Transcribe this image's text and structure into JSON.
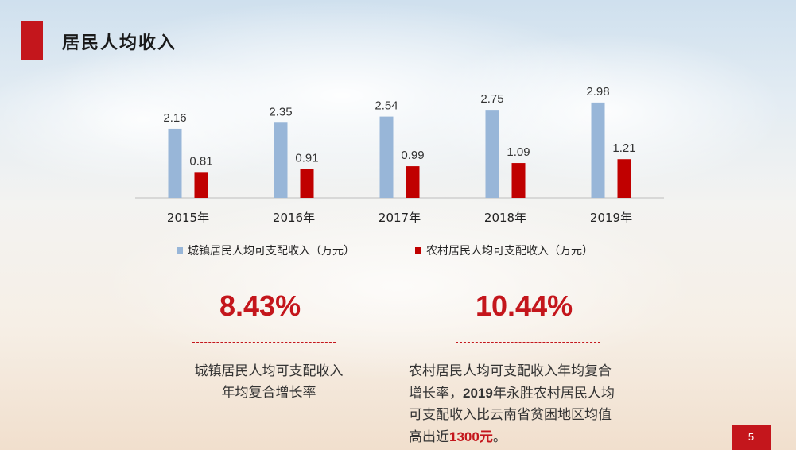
{
  "title": "居民人均收入",
  "colors": {
    "urban": "#98b6d8",
    "rural": "#c00000",
    "accent": "#c4161c"
  },
  "chart_data": {
    "type": "bar",
    "categories": [
      "2015年",
      "2016年",
      "2017年",
      "2018年",
      "2019年"
    ],
    "series": [
      {
        "name": "城镇居民人均可支配收入（万元）",
        "values": [
          2.16,
          2.35,
          2.54,
          2.75,
          2.98
        ]
      },
      {
        "name": "农村居民人均可支配收入（万元）",
        "values": [
          0.81,
          0.91,
          0.99,
          1.09,
          1.21
        ]
      }
    ],
    "ylim": [
      0,
      3.2
    ],
    "grid": false,
    "legend": "bottom",
    "value_labels": [
      "2.16",
      "2.35",
      "2.54",
      "2.75",
      "2.98",
      "0.81",
      "0.91",
      "0.99",
      "1.09",
      "1.21"
    ]
  },
  "legend": {
    "urban": "城镇居民人均可支配收入（万元）",
    "rural": "农村居民人均可支配收入（万元）"
  },
  "stats": {
    "urban_rate": "8.43%",
    "rural_rate": "10.44%"
  },
  "descriptions": {
    "urban_line1": "城镇居民人均可支配收入",
    "urban_line2": "年均复合增长率",
    "rural_line1": "农村居民人均可支配收入年均复合",
    "rural_line2_a": "增长率，",
    "rural_line2_year": "2019",
    "rural_line2_b": "年永胜农村居民人均",
    "rural_line3": "可支配收入比云南省贫困地区均值",
    "rural_line4_a": "高出近",
    "rural_line4_amount": "1300元",
    "rural_line4_b": "。"
  },
  "page_number": "5"
}
